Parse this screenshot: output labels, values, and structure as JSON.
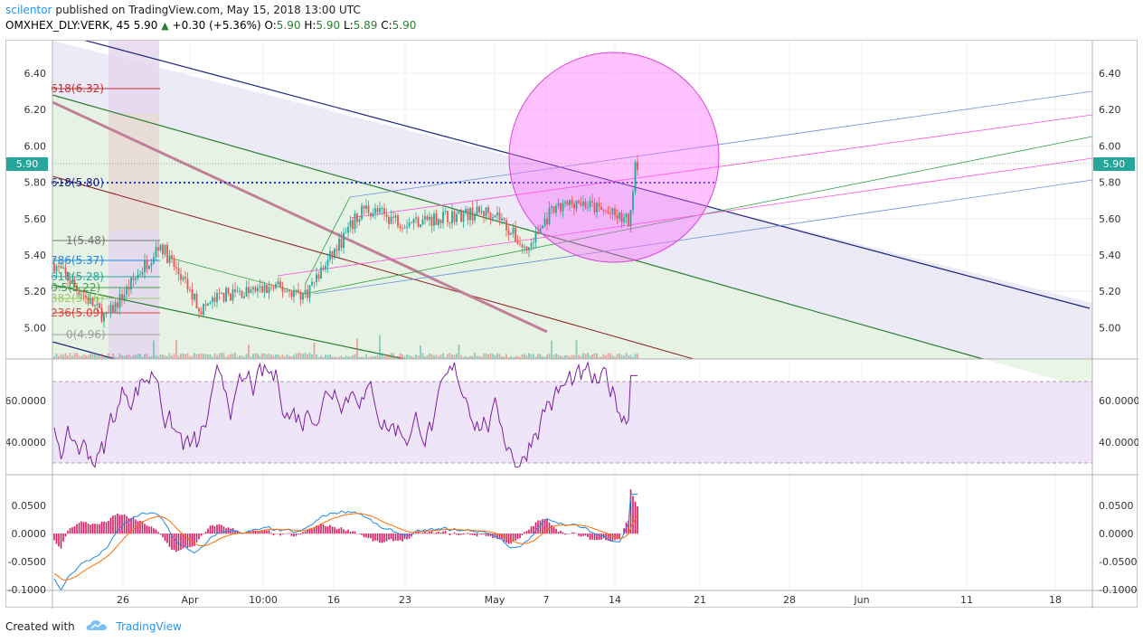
{
  "header": {
    "author": "scilentor",
    "published_text": "published on TradingView.com, May 15, 2018 13:00 UTC",
    "symbol": "OMXHEX_DLY:VERK, 45",
    "last": "5.90",
    "change": "+0.30 (+5.36%)",
    "o_label": "O:",
    "o_value": "5.90",
    "h_label": "H:",
    "h_value": "5.90",
    "l_label": "L:",
    "l_value": "5.89",
    "c_label": "C:",
    "c_value": "5.90"
  },
  "price_axis": [
    "6.40",
    "6.20",
    "6.00",
    "5.80",
    "5.60",
    "5.40",
    "5.20",
    "5.00"
  ],
  "price_marker": "5.90",
  "rsi_axis": [
    "60.0000",
    "40.0000"
  ],
  "macd_axis": [
    "0.0500",
    "0.0000",
    "-0.0500",
    "-0.1000"
  ],
  "time_axis": [
    "26",
    "Apr",
    "10:00",
    "16",
    "23",
    "May",
    "7",
    "14",
    "21",
    "28",
    "Jun",
    "11",
    "18"
  ],
  "fib_levels": [
    {
      "label": "618(6.32)",
      "color": "#c62828"
    },
    {
      "label": "618(5.80)",
      "color": "#1a237e"
    },
    {
      "label": "1(5.48)",
      "color": "#757575"
    },
    {
      "label": "786(5.37)",
      "color": "#1e88e5"
    },
    {
      "label": "618(5.28)",
      "color": "#26a69a"
    },
    {
      "label": "0.5(5.22)",
      "color": "#43a047"
    },
    {
      "label": "382(5.16)",
      "color": "#9ccc65"
    },
    {
      "label": "236(5.09)",
      "color": "#e53935"
    },
    {
      "label": "0(4.96)",
      "color": "#9e9e9e"
    }
  ],
  "colors": {
    "accent": "#2196f3",
    "up": "#26a69a",
    "down": "#ef5350",
    "rsi": "#7b1fa2",
    "macd": "#1e88e5",
    "signal": "#ff6d00",
    "histogram": "#d81b60",
    "circle": "#ff66ff"
  },
  "footer": {
    "created_with": "Created with",
    "brand": "TradingView"
  }
}
